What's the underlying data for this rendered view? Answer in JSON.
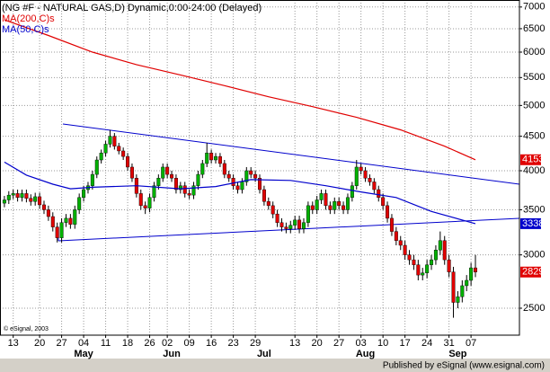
{
  "chart_data": {
    "type": "candlestick",
    "title": "(NG #F - NATURAL GAS,D) Dynamic,0:00-24:00 (Delayed)",
    "footnote": "© eSignal, 2003",
    "credit": "Published by eSignal (www.esignal.com)",
    "log_scale": true,
    "grid": true,
    "up_color": "#00b000",
    "down_color": "#e00000",
    "candles": {
      "open": [
        3580,
        3620,
        3680,
        3700,
        3650,
        3700,
        3640,
        3600,
        3660,
        3560,
        3500,
        3420,
        3300,
        3180,
        3350,
        3400,
        3330,
        3500,
        3650,
        3750,
        3800,
        3950,
        4150,
        4250,
        4380,
        4500,
        4350,
        4280,
        4200,
        4050,
        3900,
        3700,
        3550,
        3520,
        3650,
        3800,
        3900,
        4050,
        3950,
        3900,
        3750,
        3800,
        3700,
        3680,
        3800,
        3950,
        4100,
        4250,
        4150,
        4200,
        4100,
        3950,
        3900,
        3800,
        3750,
        3850,
        4000,
        3950,
        3900,
        3750,
        3600,
        3550,
        3450,
        3350,
        3300,
        3280,
        3320,
        3380,
        3280,
        3350,
        3550,
        3500,
        3620,
        3700,
        3550,
        3500,
        3600,
        3550,
        3500,
        3650,
        3800,
        4050,
        4000,
        3900,
        3850,
        3750,
        3650,
        3550,
        3400,
        3250,
        3150,
        3100,
        3000,
        2950,
        2900,
        2800,
        2820,
        2900,
        2950,
        3050,
        3150,
        2950,
        2830,
        2550,
        2600,
        2700,
        2750,
        2870
      ],
      "high": [
        3670,
        3730,
        3750,
        3750,
        3750,
        3750,
        3690,
        3710,
        3710,
        3610,
        3550,
        3470,
        3350,
        3400,
        3450,
        3450,
        3550,
        3700,
        3800,
        3850,
        4000,
        4200,
        4300,
        4430,
        4600,
        4550,
        4400,
        4330,
        4250,
        4100,
        3950,
        3750,
        3600,
        3700,
        3850,
        3950,
        4100,
        4100,
        4000,
        3950,
        3850,
        3850,
        3750,
        3850,
        4000,
        4150,
        4400,
        4300,
        4250,
        4250,
        4150,
        4000,
        3950,
        3850,
        3900,
        4050,
        4050,
        4000,
        3950,
        3800,
        3650,
        3600,
        3500,
        3400,
        3350,
        3370,
        3430,
        3430,
        3400,
        3600,
        3600,
        3670,
        3750,
        3750,
        3600,
        3650,
        3650,
        3600,
        3700,
        3850,
        4150,
        4100,
        4050,
        3950,
        3900,
        3800,
        3700,
        3600,
        3450,
        3300,
        3200,
        3150,
        3050,
        3000,
        2950,
        2870,
        2950,
        3000,
        3100,
        3250,
        3200,
        3000,
        2880,
        2650,
        2750,
        2800,
        2920,
        3000
      ],
      "low": [
        3530,
        3570,
        3630,
        3600,
        3600,
        3590,
        3550,
        3550,
        3510,
        3450,
        3370,
        3250,
        3130,
        3130,
        3300,
        3280,
        3280,
        3450,
        3600,
        3700,
        3750,
        3900,
        4100,
        4200,
        4330,
        4300,
        4230,
        4150,
        4000,
        3850,
        3650,
        3500,
        3450,
        3470,
        3600,
        3750,
        3850,
        3900,
        3850,
        3700,
        3700,
        3650,
        3630,
        3630,
        3750,
        3900,
        4050,
        4100,
        4100,
        4050,
        3900,
        3850,
        3750,
        3700,
        3700,
        3800,
        3900,
        3850,
        3700,
        3550,
        3500,
        3400,
        3300,
        3250,
        3230,
        3230,
        3270,
        3230,
        3230,
        3300,
        3450,
        3450,
        3570,
        3500,
        3450,
        3450,
        3500,
        3450,
        3450,
        3600,
        3750,
        3950,
        3850,
        3800,
        3700,
        3600,
        3500,
        3350,
        3200,
        3100,
        3050,
        2950,
        2900,
        2850,
        2750,
        2750,
        2770,
        2850,
        2900,
        3000,
        2900,
        2780,
        2420,
        2500,
        2550,
        2650,
        2700,
        2780
      ],
      "close": [
        3620,
        3680,
        3700,
        3650,
        3700,
        3640,
        3600,
        3660,
        3560,
        3500,
        3420,
        3300,
        3180,
        3350,
        3400,
        3330,
        3500,
        3650,
        3750,
        3800,
        3950,
        4150,
        4250,
        4380,
        4500,
        4350,
        4280,
        4200,
        4050,
        3900,
        3700,
        3550,
        3520,
        3650,
        3800,
        3900,
        4050,
        3950,
        3900,
        3750,
        3800,
        3700,
        3680,
        3800,
        3950,
        4100,
        4250,
        4150,
        4200,
        4100,
        3950,
        3900,
        3800,
        3750,
        3850,
        4000,
        3950,
        3900,
        3750,
        3600,
        3550,
        3450,
        3350,
        3300,
        3280,
        3320,
        3380,
        3280,
        3350,
        3550,
        3500,
        3620,
        3700,
        3550,
        3500,
        3600,
        3550,
        3500,
        3650,
        3800,
        4050,
        4000,
        3900,
        3850,
        3750,
        3650,
        3550,
        3400,
        3250,
        3150,
        3100,
        3000,
        2950,
        2900,
        2800,
        2820,
        2900,
        2950,
        3050,
        3150,
        2950,
        2830,
        2550,
        2600,
        2700,
        2750,
        2870,
        2829
      ]
    },
    "series": [
      {
        "name": "MA(200,C)s",
        "color": "#e00000",
        "x": [
          0,
          10,
          20,
          30,
          40,
          50,
          60,
          70,
          80,
          90,
          100,
          107
        ],
        "values": [
          6700,
          6350,
          6000,
          5750,
          5550,
          5350,
          5150,
          4980,
          4800,
          4600,
          4350,
          4153
        ]
      },
      {
        "name": "MA(50,C)s",
        "color": "#0000cc",
        "x": [
          0,
          5,
          11,
          15,
          20,
          30,
          40,
          48,
          56,
          65,
          73,
          81,
          89,
          97,
          107
        ],
        "values": [
          4120,
          3940,
          3820,
          3760,
          3780,
          3800,
          3760,
          3790,
          3880,
          3870,
          3800,
          3720,
          3650,
          3480,
          3338
        ]
      }
    ],
    "xlim": [
      -1,
      117
    ],
    "xticks": [
      {
        "value": 2,
        "label": "13"
      },
      {
        "value": 8,
        "label": "20"
      },
      {
        "value": 13,
        "label": "27"
      },
      {
        "value": 18,
        "label": "04"
      },
      {
        "value": 23,
        "label": "11"
      },
      {
        "value": 28,
        "label": "18"
      },
      {
        "value": 33,
        "label": "26"
      },
      {
        "value": 37,
        "label": "02"
      },
      {
        "value": 42,
        "label": "09"
      },
      {
        "value": 47,
        "label": "16"
      },
      {
        "value": 52,
        "label": "23"
      },
      {
        "value": 57,
        "label": "29"
      },
      {
        "value": 66,
        "label": "13"
      },
      {
        "value": 71,
        "label": "20"
      },
      {
        "value": 76,
        "label": "27"
      },
      {
        "value": 81,
        "label": "03"
      },
      {
        "value": 86,
        "label": "10"
      },
      {
        "value": 91,
        "label": "17"
      },
      {
        "value": 96,
        "label": "24"
      },
      {
        "value": 101,
        "label": "31"
      },
      {
        "value": 106,
        "label": "07"
      }
    ],
    "months": [
      {
        "value": 18,
        "label": "May"
      },
      {
        "value": 38,
        "label": "Jun"
      },
      {
        "value": 59,
        "label": "Jul"
      },
      {
        "value": 82,
        "label": "Aug"
      },
      {
        "value": 103,
        "label": "Sep"
      }
    ],
    "ylim": [
      2280,
      7170
    ],
    "yticks": [
      2500,
      3000,
      3500,
      4000,
      4500,
      5000,
      5500,
      6000,
      6500,
      7000
    ]
  }
}
